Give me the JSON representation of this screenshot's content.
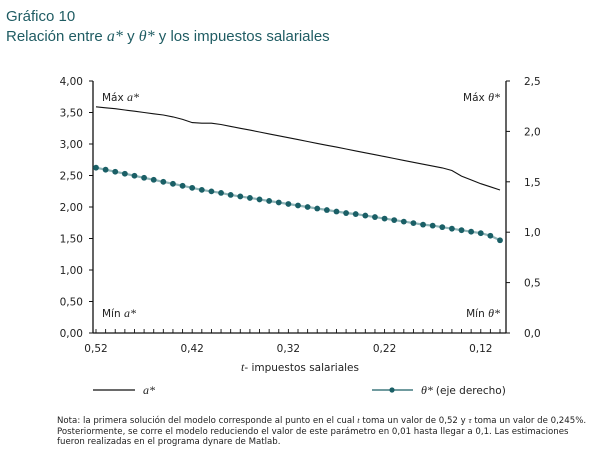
{
  "header": {
    "figure_label": "Gráfico 10",
    "title_part1": "Relación entre ",
    "title_sym1": "a*",
    "title_part2": " y ",
    "title_sym2": "θ*",
    "title_part3": " y los impuestos salariales"
  },
  "note": {
    "part1": "Nota: la primera solución del modelo corresponde al punto en el cual ",
    "sym_t": "t",
    "part2": " toma un valor de 0,52 y ",
    "sym_tau": "τ",
    "part3": " toma un valor de 0,245%. Posteriormente, se corre el modelo reduciendo el valor de este parámetro en 0,01 hasta llegar a 0,1. Las estimaciones fueron realizadas en el programa dynare de Matlab."
  },
  "chart_data": {
    "type": "line",
    "title": "Relación entre a* y θ* y los impuestos salariales",
    "xlabel_sym": "t",
    "xlabel": "- impuestos salariales",
    "x_reversed": true,
    "xlim": [
      0.52,
      0.1
    ],
    "x_tick_labels": [
      "0,52",
      "0,42",
      "0,32",
      "0,22",
      "0,12"
    ],
    "x_tick_values": [
      0.52,
      0.42,
      0.32,
      0.22,
      0.12
    ],
    "y_left": {
      "label": "",
      "ylim": [
        0,
        4
      ],
      "tick_labels": [
        "0,00",
        "0,50",
        "1,00",
        "1,50",
        "2,00",
        "2,50",
        "3,00",
        "3,50",
        "4,00"
      ]
    },
    "y_right": {
      "label": "",
      "ylim": [
        0,
        2.5
      ],
      "tick_labels": [
        "0,0",
        "0,5",
        "1,0",
        "1,5",
        "2,0",
        "2,5"
      ]
    },
    "grid": false,
    "legend_position": "bottom",
    "annotations": {
      "max_left": "Máx a*",
      "min_left": "Mín a*",
      "max_right": "Máx θ*",
      "min_right": "Mín θ*"
    },
    "x": [
      0.52,
      0.51,
      0.5,
      0.49,
      0.48,
      0.47,
      0.46,
      0.45,
      0.44,
      0.43,
      0.42,
      0.41,
      0.4,
      0.39,
      0.38,
      0.37,
      0.36,
      0.35,
      0.34,
      0.33,
      0.32,
      0.31,
      0.3,
      0.29,
      0.28,
      0.27,
      0.26,
      0.25,
      0.24,
      0.23,
      0.22,
      0.21,
      0.2,
      0.19,
      0.18,
      0.17,
      0.16,
      0.15,
      0.14,
      0.13,
      0.12,
      0.11,
      0.1
    ],
    "series": [
      {
        "name": "a*",
        "axis": "left",
        "color": "#111111",
        "marker": "none",
        "values": [
          3.59,
          3.575,
          3.56,
          3.54,
          3.52,
          3.5,
          3.48,
          3.46,
          3.43,
          3.39,
          3.34,
          3.33,
          3.33,
          3.31,
          3.28,
          3.25,
          3.22,
          3.19,
          3.16,
          3.13,
          3.1,
          3.07,
          3.04,
          3.01,
          2.98,
          2.95,
          2.92,
          2.89,
          2.86,
          2.83,
          2.8,
          2.77,
          2.74,
          2.71,
          2.68,
          2.65,
          2.62,
          2.58,
          2.49,
          2.43,
          2.37,
          2.32,
          2.27
        ]
      },
      {
        "name": "θ* (eje derecho)",
        "axis": "right",
        "color": "#1a5f66",
        "marker": "circle",
        "values": [
          1.64,
          1.62,
          1.6,
          1.58,
          1.56,
          1.54,
          1.52,
          1.5,
          1.48,
          1.46,
          1.44,
          1.42,
          1.405,
          1.39,
          1.37,
          1.355,
          1.34,
          1.325,
          1.31,
          1.295,
          1.28,
          1.265,
          1.25,
          1.235,
          1.22,
          1.205,
          1.19,
          1.18,
          1.165,
          1.15,
          1.135,
          1.12,
          1.105,
          1.09,
          1.075,
          1.065,
          1.05,
          1.035,
          1.02,
          1.005,
          0.99,
          0.965,
          0.92
        ]
      }
    ]
  }
}
